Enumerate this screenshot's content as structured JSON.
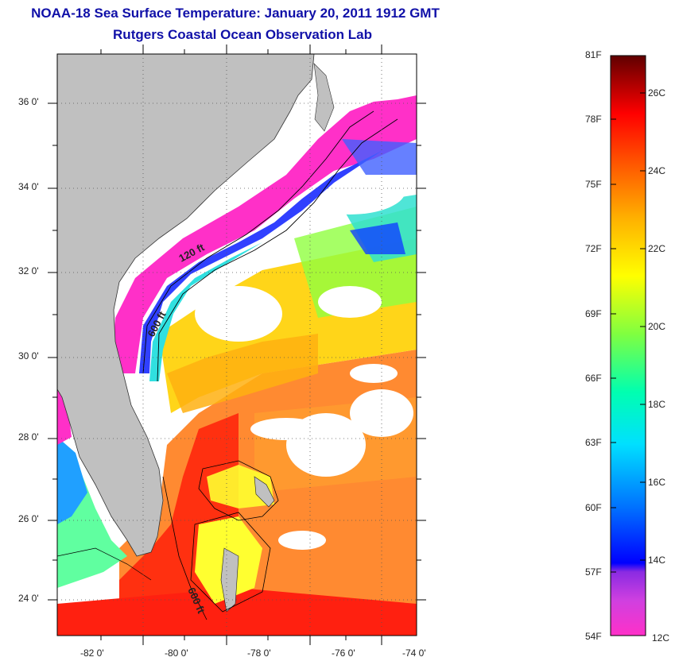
{
  "title": {
    "line1": "NOAA-18 Sea Surface Temperature:  January 20, 2011 1912 GMT",
    "line2": "Rutgers Coastal Ocean Observation Lab"
  },
  "map": {
    "lat_labels": [
      "36 0'",
      "34 0'",
      "32 0'",
      "30 0'",
      "28 0'",
      "26 0'",
      "24 0'"
    ],
    "lon_labels": [
      "-82 0'",
      "-80 0'",
      "-78 0'",
      "-76 0'",
      "-74 0'"
    ],
    "isobath_labels": [
      "120 ft",
      "600 ft",
      "600 ft"
    ],
    "land_color": "#c0c0c0",
    "cloud_color": "#ffffff"
  },
  "colorbar": {
    "fahrenheit_labels": [
      "81F",
      "78F",
      "75F",
      "72F",
      "69F",
      "66F",
      "63F",
      "60F",
      "57F",
      "54F"
    ],
    "celsius_labels": [
      "26C",
      "24C",
      "22C",
      "20C",
      "18C",
      "16C",
      "14C",
      "12C"
    ],
    "colors": [
      "#ff30c8",
      "#8a2be2",
      "#0000ff",
      "#00a0ff",
      "#00e0e0",
      "#40ff80",
      "#c8ff00",
      "#ffff00",
      "#ffc000",
      "#ff7000",
      "#ff2000",
      "#a00000",
      "#600000"
    ]
  }
}
